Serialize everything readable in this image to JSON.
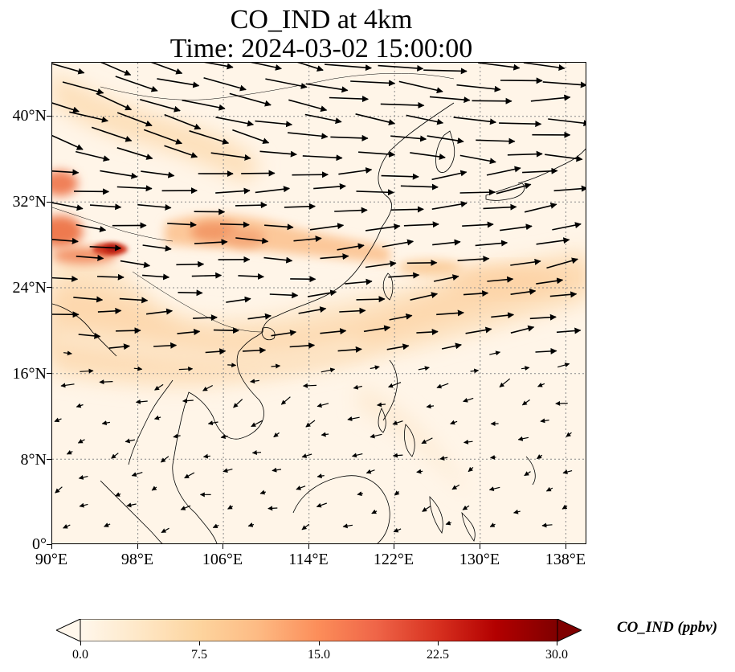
{
  "title": {
    "line1": "CO_IND at 4km",
    "line2": "Time: 2024-03-02 15:00:00"
  },
  "map": {
    "extent": {
      "lon_min": 90,
      "lon_max": 140,
      "lat_min": 0,
      "lat_max": 45
    },
    "lat_ticks": [
      "40°N",
      "32°N",
      "24°N",
      "16°N",
      "8°N",
      "0°"
    ],
    "lon_ticks": [
      "90°E",
      "98°E",
      "106°E",
      "114°E",
      "122°E",
      "130°E",
      "138°E"
    ],
    "gridlines": "dotted",
    "coastlines": true,
    "wind_vectors": true,
    "plume_max_region": "upper Brahmaputra / southeast Tibet (~95-97°E, 27-28°N)"
  },
  "colorbar": {
    "label": "CO_IND (ppbv)",
    "ticks": [
      "0.0",
      "7.5",
      "15.0",
      "22.5",
      "30.0"
    ],
    "min": 0,
    "max": 30,
    "colormap": "OrRd",
    "extend": "both",
    "colors": [
      "#fff7ec",
      "#fee8c8",
      "#fdd49e",
      "#fdbb84",
      "#fc8d59",
      "#ef6548",
      "#d7301f",
      "#b30000",
      "#7f0000"
    ]
  }
}
